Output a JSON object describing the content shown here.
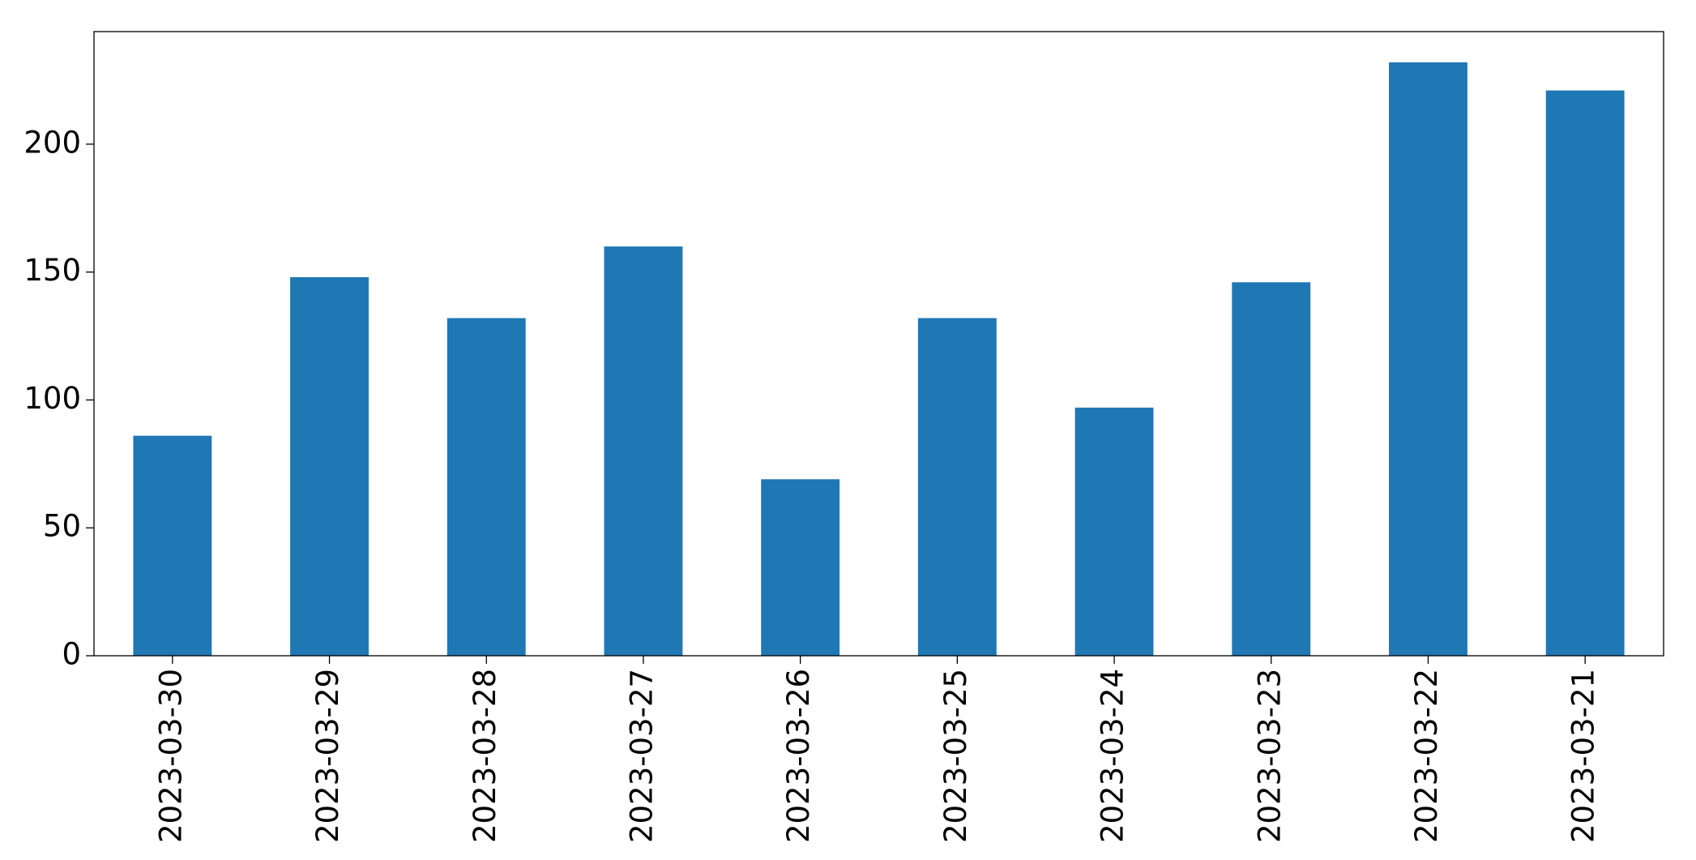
{
  "chart_data": {
    "type": "bar",
    "categories": [
      "2023-03-30",
      "2023-03-29",
      "2023-03-28",
      "2023-03-27",
      "2023-03-26",
      "2023-03-25",
      "2023-03-24",
      "2023-03-23",
      "2023-03-22",
      "2023-03-21"
    ],
    "values": [
      86,
      148,
      132,
      160,
      69,
      132,
      97,
      146,
      232,
      221
    ],
    "color": "#1f77b4",
    "ylim": [
      0,
      244
    ],
    "yticks": [
      0,
      50,
      100,
      150,
      200
    ],
    "grid": false
  }
}
